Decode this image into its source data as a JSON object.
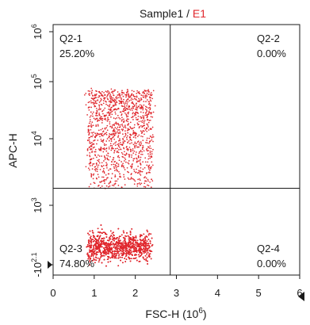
{
  "chart_data": {
    "type": "scatter",
    "title": "Sample1 / E1",
    "title_sample": "Sample1",
    "title_sep": " / ",
    "title_gate": "E1",
    "xlabel_main": "FSC-H (10",
    "xlabel_exp": "6",
    "xlabel_end": ")",
    "ylabel": "APC-H",
    "x_scale": "linear",
    "y_scale": "biexponential",
    "xlim": [
      0,
      6
    ],
    "x_ticks": [
      "0",
      "1",
      "2",
      "3",
      "4",
      "5",
      "6"
    ],
    "y_ticks": [
      {
        "base": "-10",
        "exp": "2.1",
        "value": -126
      },
      {
        "base": "10",
        "exp": "3",
        "value": 1000
      },
      {
        "base": "10",
        "exp": "4",
        "value": 10000
      },
      {
        "base": "10",
        "exp": "5",
        "value": 100000
      },
      {
        "base": "10",
        "exp": "6",
        "value": 1000000
      }
    ],
    "quadrant_thresholds": {
      "x": 2.85,
      "y": 1800
    },
    "quadrants": [
      {
        "name": "Q2-1",
        "percent": "25.20%",
        "position": "top-left"
      },
      {
        "name": "Q2-2",
        "percent": "0.00%",
        "position": "top-right"
      },
      {
        "name": "Q2-3",
        "percent": "74.80%",
        "position": "bottom-left"
      },
      {
        "name": "Q2-4",
        "percent": "0.00%",
        "position": "bottom-right"
      }
    ],
    "point_color": "#e0282e",
    "populations": [
      {
        "name": "upper",
        "x_range": [
          0.85,
          2.55
        ],
        "y_range": [
          1800,
          70000
        ],
        "share": 0.252
      },
      {
        "name": "lower",
        "x_range": [
          0.85,
          2.55
        ],
        "y_range": [
          -126,
          1800
        ],
        "share": 0.748
      }
    ],
    "grid": false,
    "legend": "none"
  }
}
